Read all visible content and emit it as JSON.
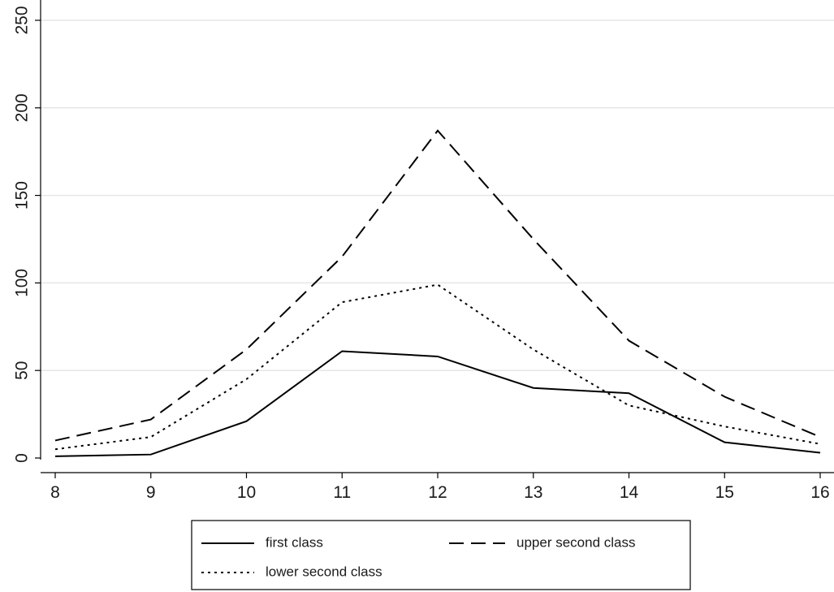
{
  "chart_data": {
    "type": "line",
    "title": "",
    "xlabel": "",
    "ylabel": "",
    "x": [
      8,
      9,
      10,
      11,
      12,
      13,
      14,
      15,
      16
    ],
    "xlim": [
      8,
      16
    ],
    "ylim": [
      0,
      250
    ],
    "x_ticks": [
      "8",
      "9",
      "10",
      "11",
      "12",
      "13",
      "14",
      "15",
      "16"
    ],
    "y_ticks": [
      "0",
      "50",
      "100",
      "150",
      "200",
      "250"
    ],
    "grid": "horizontal",
    "legend_position": "bottom",
    "series": [
      {
        "name": "first class",
        "style": "solid",
        "color": "#000000",
        "values": [
          1,
          2,
          21,
          61,
          58,
          40,
          37,
          9,
          3
        ]
      },
      {
        "name": "upper second class",
        "style": "dashed",
        "color": "#000000",
        "values": [
          10,
          22,
          62,
          115,
          187,
          125,
          67,
          35,
          12
        ]
      },
      {
        "name": "lower second class",
        "style": "dotted",
        "color": "#000000",
        "values": [
          5,
          12,
          45,
          89,
          99,
          62,
          30,
          18,
          8
        ]
      }
    ]
  }
}
